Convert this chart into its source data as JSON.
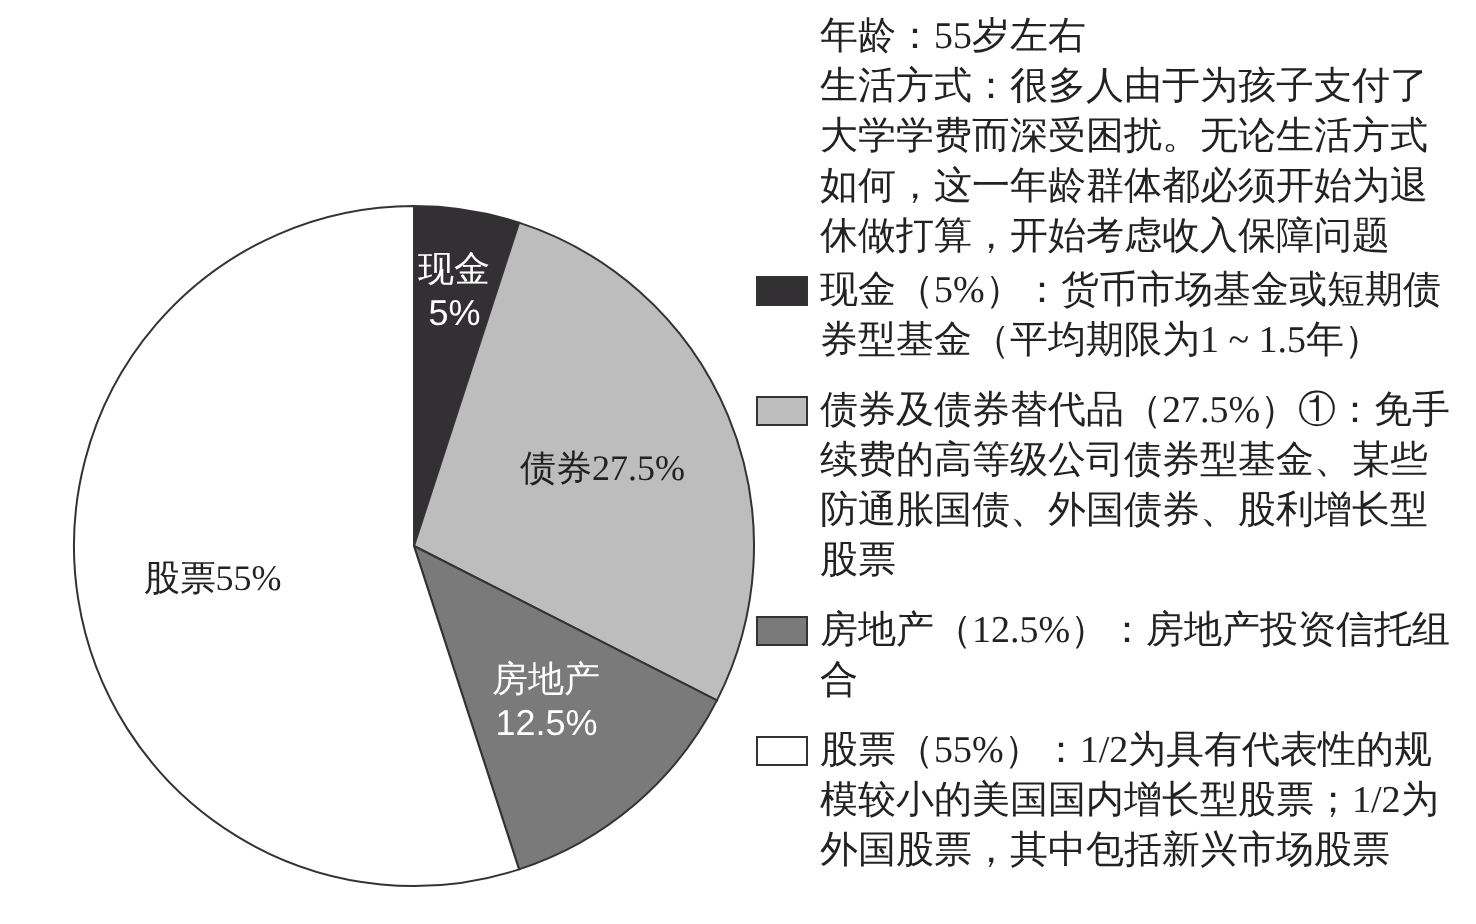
{
  "chart_data": {
    "type": "pie",
    "title": "年龄：55岁左右",
    "subtitle": "生活方式：很多人由于为孩子支付了大学学费而深受困扰。无论生活方式如何，这一年龄群体都必须开始为退休做打算，开始考虑收入保障问题",
    "categories": [
      "现金（5%）：货币市场基金或短期债券型基金（平均期限为1 ~ 1.5年）",
      "债券及债券替代品（27.5%）①：免手续费的高等级公司债券型基金、某些防通胀国债、外国债券、股利增长型股票",
      "房地产（12.5%）：房地产投资信托组合",
      "股票（55%）：1/2为具有代表性的规模较小的美国国内增长型股票；1/2为外国股票，其中包括新兴市场股票"
    ],
    "values": [
      5,
      27.5,
      12.5,
      55
    ],
    "colors": [
      "#333033",
      "#bdbdbd",
      "#7a7a7a",
      "#ffffff"
    ],
    "value_labels": [
      "现金\n5%",
      "债券27.5%",
      "房地产\n12.5%",
      "股票55%"
    ],
    "legend": "right"
  }
}
